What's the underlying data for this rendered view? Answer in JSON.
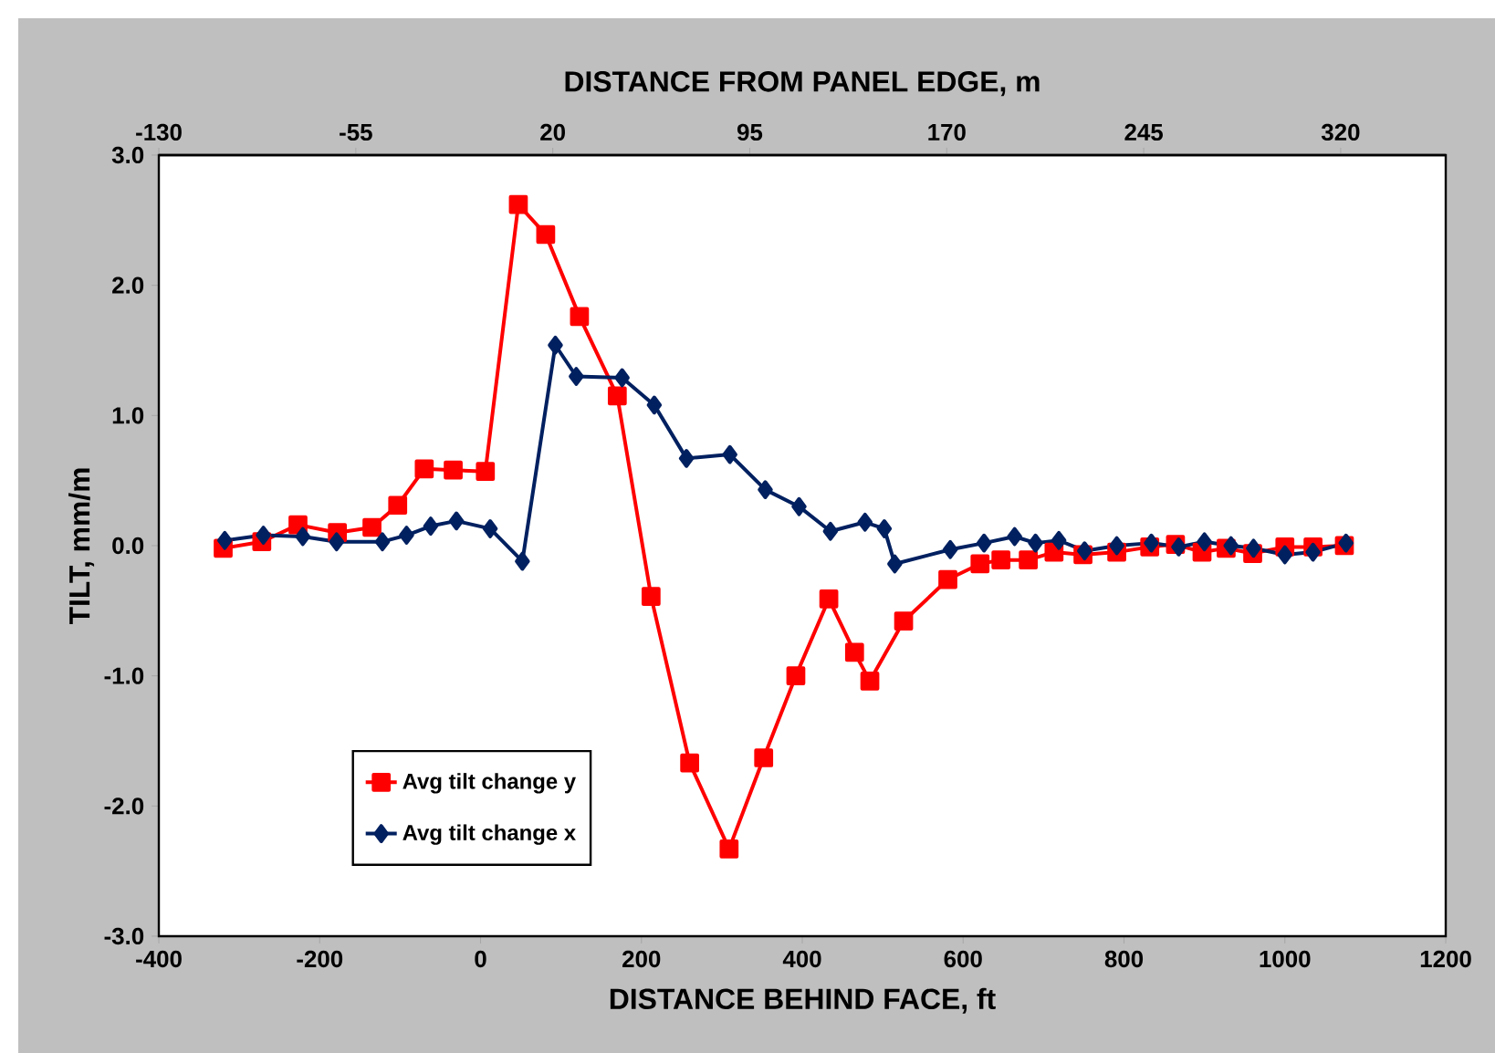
{
  "chart_data": {
    "type": "line",
    "xlabel": "DISTANCE BEHIND FACE, ft",
    "ylabel": "TILT, mm/m",
    "x2label": "DISTANCE FROM PANEL EDGE,  m",
    "xlim": [
      -400,
      1200
    ],
    "xticks": [
      -400,
      -200,
      0,
      200,
      400,
      600,
      800,
      1000,
      1200
    ],
    "ylim": [
      -3,
      3
    ],
    "yticks": [
      {
        "value": -3,
        "label": "-3.0"
      },
      {
        "value": -2,
        "label": "-2.0"
      },
      {
        "value": -1,
        "label": "-1.0"
      },
      {
        "value": 0,
        "label": "0.0"
      },
      {
        "value": 1,
        "label": "1.0"
      },
      {
        "value": 2,
        "label": "2.0"
      },
      {
        "value": 3,
        "label": "3.0"
      }
    ],
    "x2lim": [
      -130,
      360
    ],
    "x2ticks": [
      -130,
      -55,
      20,
      95,
      170,
      245,
      320
    ],
    "grid": false,
    "legend": "bottom left",
    "series": [
      {
        "name": "Avg tilt change y",
        "color": "#ff0000",
        "marker": "square",
        "x": [
          -320,
          -272,
          -227,
          -178,
          -135,
          -103,
          -70,
          -34,
          6,
          47,
          81,
          123,
          170,
          212,
          260,
          309,
          352,
          392,
          433,
          465,
          484,
          526,
          581,
          621,
          647,
          681,
          713,
          749,
          791,
          832,
          864,
          897,
          927,
          960,
          1000,
          1035,
          1074
        ],
        "values": [
          -0.02,
          0.03,
          0.16,
          0.1,
          0.14,
          0.31,
          0.59,
          0.58,
          0.57,
          2.62,
          2.39,
          1.76,
          1.15,
          -0.39,
          -1.67,
          -2.33,
          -1.63,
          -1.0,
          -0.41,
          -0.82,
          -1.04,
          -0.58,
          -0.26,
          -0.14,
          -0.11,
          -0.11,
          -0.05,
          -0.07,
          -0.05,
          -0.01,
          0.01,
          -0.05,
          -0.02,
          -0.06,
          -0.01,
          -0.01,
          0.0
        ]
      },
      {
        "name": "Avg tilt change x",
        "color": "#002060",
        "marker": "diamond",
        "x": [
          -318,
          -270,
          -221,
          -179,
          -122,
          -92,
          -62,
          -30,
          12,
          52,
          93,
          119,
          176,
          216,
          256,
          310,
          354,
          396,
          435,
          478,
          502,
          515,
          584,
          626,
          664,
          690,
          719,
          751,
          791,
          834,
          868,
          900,
          933,
          961,
          1000,
          1035,
          1076
        ],
        "values": [
          0.04,
          0.08,
          0.07,
          0.03,
          0.03,
          0.08,
          0.15,
          0.19,
          0.13,
          -0.12,
          1.54,
          1.3,
          1.29,
          1.08,
          0.67,
          0.7,
          0.43,
          0.3,
          0.11,
          0.18,
          0.13,
          -0.14,
          -0.03,
          0.02,
          0.07,
          0.02,
          0.04,
          -0.04,
          0.0,
          0.02,
          -0.01,
          0.03,
          0.0,
          -0.02,
          -0.07,
          -0.05,
          0.02
        ]
      }
    ]
  }
}
